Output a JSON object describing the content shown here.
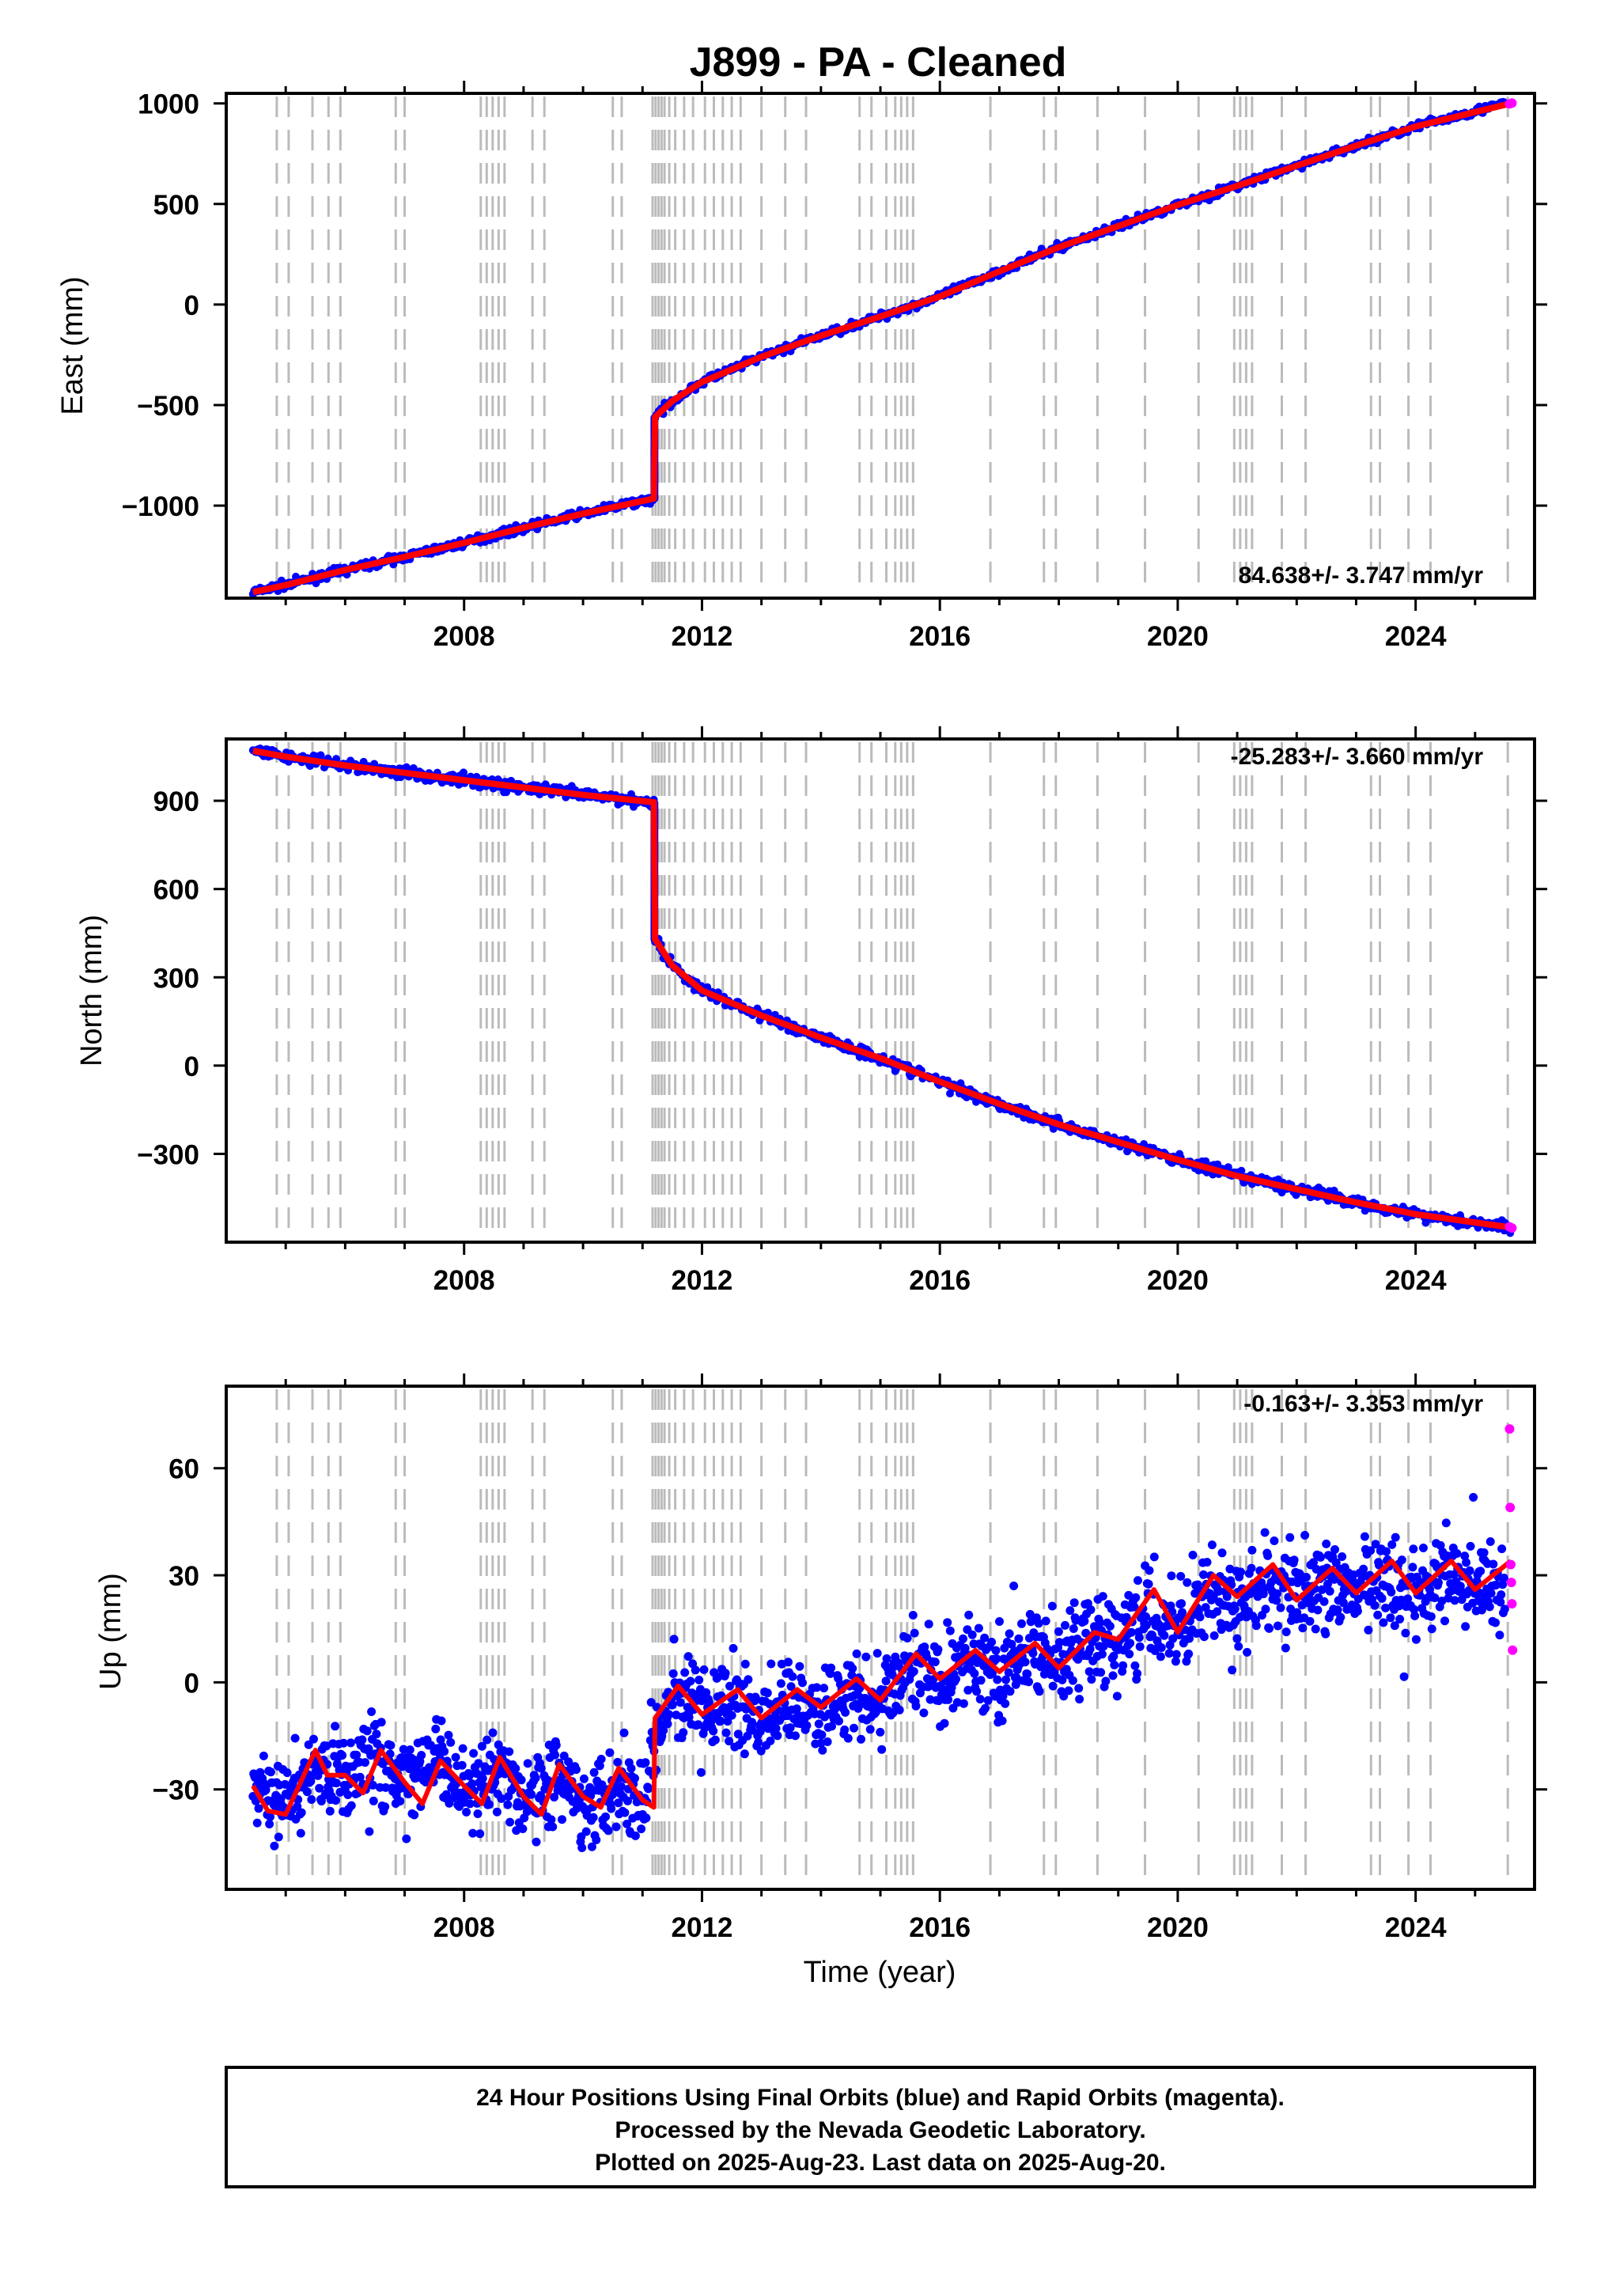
{
  "chart_data": [
    {
      "type": "scatter",
      "title": "J899  - PA - Cleaned",
      "ylabel": "East (mm)",
      "xlabel": "",
      "rate_text": "84.638+/- 3.747 mm/yr",
      "xlim": [
        2004.0,
        2026.0
      ],
      "ylim": [
        -1460,
        1050
      ],
      "x_ticks": [
        2008,
        2012,
        2016,
        2020,
        2024
      ],
      "y_ticks": [
        -1000,
        -500,
        0,
        500,
        1000
      ],
      "y_tick_labels": [
        "−1000",
        "−500",
        "0",
        "500",
        "1000"
      ],
      "grid": false,
      "series": [
        {
          "name": "Final Orbits",
          "color": "#0000ff",
          "x": [
            2004.45,
            2005.0,
            2006.0,
            2007.0,
            2008.0,
            2009.0,
            2010.0,
            2011.19,
            2011.21,
            2011.5,
            2012.0,
            2013.0,
            2014.0,
            2015.0,
            2016.0,
            2017.0,
            2018.0,
            2019.0,
            2020.0,
            2021.0,
            2022.0,
            2023.0,
            2024.0,
            2025.5
          ],
          "y": [
            -1430,
            -1395,
            -1320,
            -1255,
            -1185,
            -1110,
            -1040,
            -965,
            -560,
            -480,
            -385,
            -260,
            -155,
            -60,
            40,
            165,
            285,
            390,
            495,
            590,
            690,
            790,
            885,
            1000
          ]
        },
        {
          "name": "Rapid Orbits",
          "color": "#ff00ff",
          "x": [
            2025.58,
            2025.62
          ],
          "y": [
            998,
            1002
          ]
        },
        {
          "name": "Model",
          "color": "#ff0000",
          "x": [
            2004.45,
            2005.0,
            2006.0,
            2007.0,
            2008.0,
            2009.0,
            2010.0,
            2011.19,
            2011.21,
            2011.5,
            2012.0,
            2013.0,
            2014.0,
            2015.0,
            2016.0,
            2017.0,
            2018.0,
            2019.0,
            2020.0,
            2021.0,
            2022.0,
            2023.0,
            2024.0,
            2025.6
          ],
          "y": [
            -1430,
            -1395,
            -1320,
            -1255,
            -1185,
            -1110,
            -1040,
            -965,
            -560,
            -480,
            -385,
            -260,
            -155,
            -60,
            40,
            165,
            285,
            390,
            495,
            590,
            690,
            790,
            885,
            1000
          ]
        }
      ]
    },
    {
      "type": "scatter",
      "title": "",
      "ylabel": "North (mm)",
      "xlabel": "",
      "rate_text": "-25.283+/- 3.660 mm/yr",
      "xlim": [
        2004.0,
        2026.0
      ],
      "ylim": [
        -600,
        1110
      ],
      "x_ticks": [
        2008,
        2012,
        2016,
        2020,
        2024
      ],
      "y_ticks": [
        -300,
        0,
        300,
        600,
        900
      ],
      "y_tick_labels": [
        "−300",
        "0",
        "300",
        "600",
        "900"
      ],
      "grid": false,
      "series": [
        {
          "name": "Final Orbits",
          "color": "#0000ff",
          "x": [
            2004.45,
            2005.0,
            2006.0,
            2007.0,
            2008.0,
            2009.0,
            2010.0,
            2011.19,
            2011.21,
            2011.5,
            2012.0,
            2013.0,
            2014.0,
            2015.0,
            2016.0,
            2017.0,
            2018.0,
            2019.0,
            2020.0,
            2021.0,
            2022.0,
            2023.0,
            2024.0,
            2025.6
          ],
          "y": [
            1070,
            1050,
            1020,
            995,
            970,
            945,
            920,
            895,
            430,
            340,
            255,
            170,
            95,
            25,
            -55,
            -130,
            -200,
            -260,
            -320,
            -375,
            -420,
            -465,
            -505,
            -550
          ]
        },
        {
          "name": "Rapid Orbits",
          "color": "#ff00ff",
          "x": [
            2025.58,
            2025.62
          ],
          "y": [
            -548,
            -552
          ]
        },
        {
          "name": "Model",
          "color": "#ff0000",
          "x": [
            2004.45,
            2005.0,
            2006.0,
            2007.0,
            2008.0,
            2009.0,
            2010.0,
            2011.19,
            2011.21,
            2011.5,
            2012.0,
            2013.0,
            2014.0,
            2015.0,
            2016.0,
            2017.0,
            2018.0,
            2019.0,
            2020.0,
            2021.0,
            2022.0,
            2023.0,
            2024.0,
            2025.6
          ],
          "y": [
            1070,
            1050,
            1020,
            995,
            970,
            945,
            920,
            895,
            430,
            340,
            255,
            170,
            95,
            25,
            -55,
            -130,
            -200,
            -260,
            -320,
            -375,
            -420,
            -465,
            -505,
            -550
          ]
        }
      ]
    },
    {
      "type": "scatter",
      "title": "",
      "ylabel": "Up (mm)",
      "xlabel": "Time (year)",
      "rate_text": "-0.163+/- 3.353 mm/yr",
      "xlim": [
        2004.0,
        2026.0
      ],
      "ylim": [
        -58,
        83
      ],
      "x_ticks": [
        2008,
        2012,
        2016,
        2020,
        2024
      ],
      "y_ticks": [
        -30,
        0,
        30,
        60
      ],
      "y_tick_labels": [
        "−30",
        "0",
        "30",
        "60"
      ],
      "grid": false,
      "series": [
        {
          "name": "Final Orbits",
          "color": "#0000ff",
          "x": [
            2004.45,
            2005.0,
            2005.5,
            2006.0,
            2006.5,
            2007.0,
            2007.5,
            2008.0,
            2008.5,
            2009.0,
            2009.5,
            2010.0,
            2010.5,
            2011.0,
            2011.3,
            2011.5,
            2012.0,
            2012.5,
            2013.0,
            2013.5,
            2014.0,
            2014.5,
            2015.0,
            2015.5,
            2016.0,
            2016.5,
            2017.0,
            2017.5,
            2018.0,
            2018.5,
            2019.0,
            2019.5,
            2020.0,
            2020.5,
            2021.0,
            2021.5,
            2022.0,
            2022.5,
            2023.0,
            2023.5,
            2024.0,
            2024.5,
            2025.0,
            2025.5
          ],
          "y": [
            -30,
            -35,
            -24,
            -27,
            -20,
            -29,
            -22,
            -30,
            -24,
            -33,
            -26,
            -34,
            -28,
            -33,
            -8,
            -2,
            -10,
            -6,
            -12,
            -3,
            -8,
            -4,
            -6,
            6,
            0,
            6,
            2,
            8,
            6,
            12,
            10,
            20,
            14,
            25,
            20,
            28,
            24,
            28,
            26,
            30,
            26,
            30,
            27,
            26
          ]
        },
        {
          "name": "Rapid Orbits",
          "color": "#ff00ff",
          "x": [
            2025.58,
            2025.59,
            2025.6,
            2025.61,
            2025.62,
            2025.63
          ],
          "y": [
            71,
            49,
            33,
            28,
            22,
            9
          ]
        },
        {
          "name": "Model",
          "color": "#ff0000",
          "x": [
            2004.45,
            2004.7,
            2005.0,
            2005.5,
            2005.7,
            2006.0,
            2006.3,
            2006.6,
            2007.0,
            2007.3,
            2007.6,
            2008.0,
            2008.3,
            2008.6,
            2009.0,
            2009.3,
            2009.6,
            2010.0,
            2010.3,
            2010.6,
            2011.0,
            2011.19,
            2011.21,
            2011.6,
            2012.0,
            2012.6,
            2013.0,
            2013.6,
            2014.0,
            2014.6,
            2015.0,
            2015.6,
            2016.0,
            2016.6,
            2017.0,
            2017.6,
            2018.0,
            2018.6,
            2019.0,
            2019.6,
            2020.0,
            2020.6,
            2021.0,
            2021.6,
            2022.0,
            2022.6,
            2023.0,
            2023.6,
            2024.0,
            2024.6,
            2025.0,
            2025.6
          ],
          "y": [
            -29,
            -36,
            -37,
            -19,
            -26,
            -26,
            -31,
            -19,
            -28,
            -34,
            -22,
            -29,
            -34,
            -21,
            -32,
            -37,
            -23,
            -32,
            -35,
            -24,
            -33,
            -35,
            -10,
            -1,
            -9,
            -2,
            -10,
            -2,
            -7,
            1,
            -5,
            8,
            1,
            9,
            3,
            11,
            4,
            14,
            12,
            26,
            14,
            30,
            24,
            33,
            23,
            32,
            25,
            34,
            25,
            34,
            26,
            34
          ]
        }
      ]
    }
  ],
  "events_x": [
    2004.85,
    2005.05,
    2005.45,
    2005.72,
    2005.92,
    2006.85,
    2007.0,
    2008.28,
    2008.38,
    2008.48,
    2008.58,
    2008.68,
    2009.15,
    2009.35,
    2010.5,
    2010.65,
    2011.17,
    2011.22,
    2011.27,
    2011.32,
    2011.37,
    2011.45,
    2011.55,
    2011.7,
    2011.85,
    2012.05,
    2012.2,
    2012.35,
    2012.5,
    2012.65,
    2013.0,
    2013.4,
    2013.75,
    2014.65,
    2014.85,
    2015.1,
    2015.25,
    2015.35,
    2015.45,
    2015.55,
    2016.85,
    2017.75,
    2017.95,
    2018.65,
    2019.45,
    2020.35,
    2020.95,
    2021.05,
    2021.15,
    2021.25,
    2021.75,
    2022.15,
    2023.25,
    2023.4,
    2023.88,
    2024.25,
    2025.55
  ],
  "footer": {
    "line1": "24 Hour Positions Using Final Orbits (blue) and Rapid Orbits (magenta).",
    "line2": "Processed by the Nevada Geodetic Laboratory.",
    "line3": "Plotted on 2025-Aug-23. Last data on 2025-Aug-20."
  },
  "colors": {
    "data": "#0000ff",
    "rapid": "#ff00ff",
    "model": "#ff0000",
    "events": "#bbbbbb",
    "frame": "#000000"
  }
}
